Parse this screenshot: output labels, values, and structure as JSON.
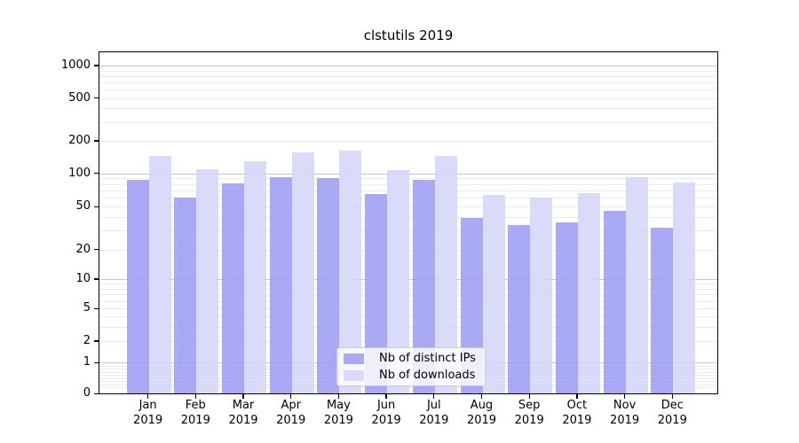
{
  "title": "clstutils 2019",
  "chart_data": {
    "type": "bar",
    "title": "clstutils 2019",
    "categories": [
      "Jan",
      "Feb",
      "Mar",
      "Apr",
      "May",
      "Jun",
      "Jul",
      "Aug",
      "Sep",
      "Oct",
      "Nov",
      "Dec"
    ],
    "year_label": "2019",
    "series": [
      {
        "name": "Nb of distinct IPs",
        "color": "#9a9af3",
        "values": [
          88,
          61,
          81,
          92,
          90,
          65,
          87,
          39,
          34,
          36,
          46,
          32
        ]
      },
      {
        "name": "Nb of downloads",
        "color": "#d4d4f8",
        "values": [
          144,
          110,
          129,
          156,
          163,
          108,
          144,
          64,
          61,
          66,
          92,
          83
        ]
      }
    ],
    "yscale": "symlog",
    "yticks": [
      0,
      1,
      2,
      5,
      10,
      20,
      50,
      100,
      200,
      500,
      1000
    ],
    "ylim": [
      0,
      1300
    ],
    "xlabel": "",
    "ylabel": "",
    "grid": "on",
    "grid_major_color": "#c9c9c9",
    "grid_minor_color": "#ebebeb",
    "legend_position": "lower center"
  }
}
